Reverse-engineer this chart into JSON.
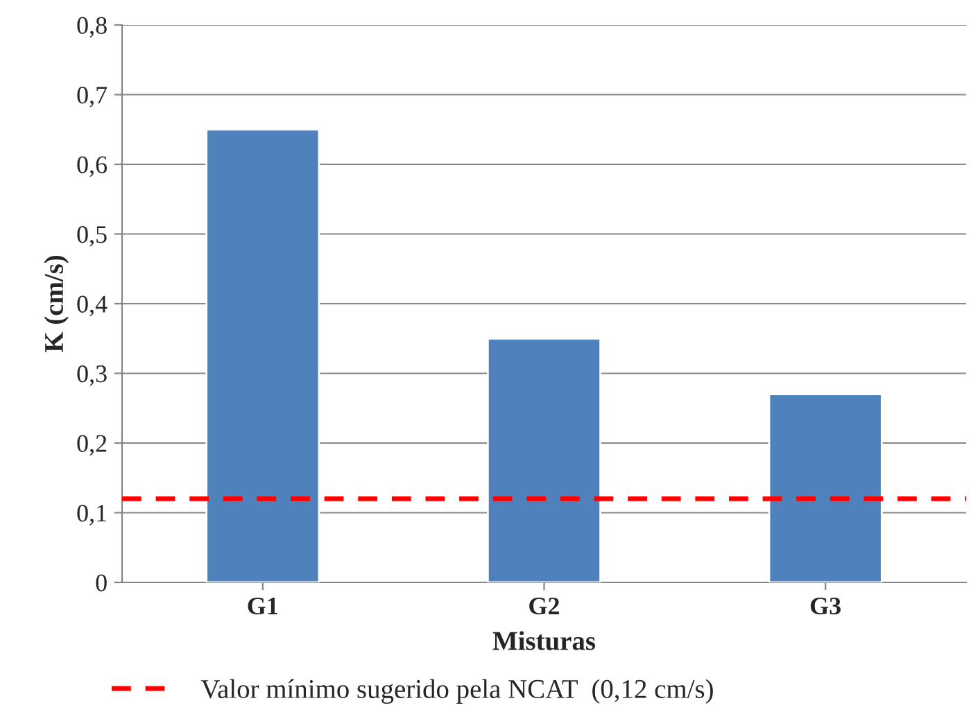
{
  "chart_data": {
    "type": "bar",
    "xlabel": "Misturas",
    "ylabel": "K (cm/s)",
    "categories": [
      "G1",
      "G2",
      "G3"
    ],
    "values": [
      0.65,
      0.35,
      0.27
    ],
    "color": "#4f81bd",
    "ylim": [
      0,
      0.8
    ],
    "yticks": [
      0,
      {
        "value": 0.1,
        "label": "0,1"
      },
      {
        "value": 0.2,
        "label": "0,2"
      },
      {
        "value": 0.3,
        "label": "0,3"
      },
      {
        "value": 0.4,
        "label": "0,4"
      },
      {
        "value": 0.5,
        "label": "0,5"
      },
      {
        "value": 0.6,
        "label": "0,6"
      },
      {
        "value": 0.7,
        "label": "0,7"
      },
      {
        "value": 0.8,
        "label": "0,8"
      }
    ],
    "grid": "y",
    "legend": "bottom",
    "ref_lines": [
      {
        "axis": "y",
        "value": 0.12,
        "label": "Valor mínimo sugerido pela NCAT  (0,12 cm/s)",
        "color": "#ff0000",
        "line_style": "dashed"
      }
    ]
  }
}
